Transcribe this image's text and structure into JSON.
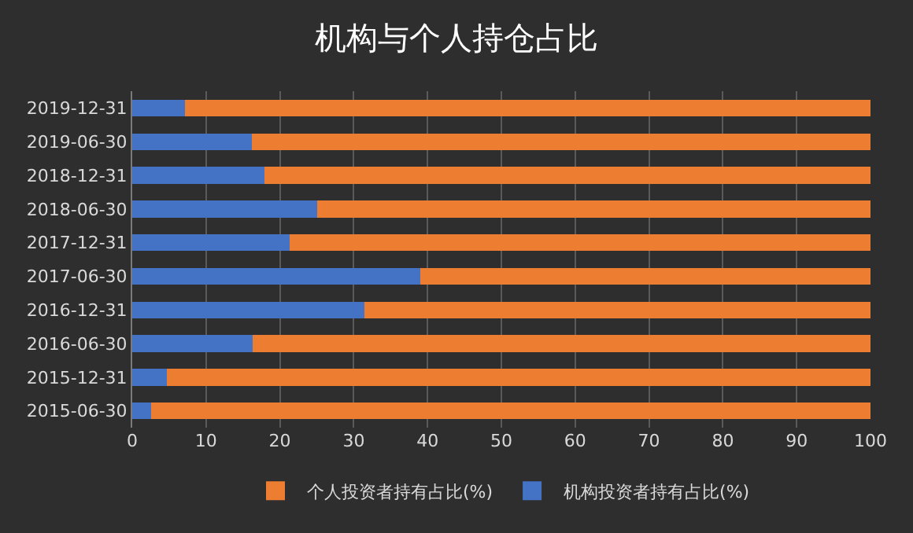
{
  "chart_data": {
    "type": "bar",
    "orientation": "horizontal",
    "stacked": true,
    "title": "机构与个人持仓占比",
    "categories": [
      "2019-12-31",
      "2019-06-30",
      "2018-12-31",
      "2018-06-30",
      "2017-12-31",
      "2017-06-30",
      "2016-12-31",
      "2016-06-30",
      "2015-12-31",
      "2015-06-30"
    ],
    "series": [
      {
        "name": "机构投资者持有占比(%)",
        "color": "#4472c4",
        "values": [
          7.1,
          16.2,
          17.9,
          25.1,
          21.3,
          39.0,
          31.5,
          16.3,
          4.7,
          2.6
        ]
      },
      {
        "name": "个人投资者持有占比(%)",
        "color": "#ed7d31",
        "values": [
          92.9,
          83.8,
          82.1,
          74.9,
          78.7,
          61.0,
          68.5,
          83.7,
          95.3,
          97.4
        ]
      }
    ],
    "xlim": [
      0,
      100
    ],
    "xticks": [
      0,
      10,
      20,
      30,
      40,
      50,
      60,
      70,
      80,
      90,
      100
    ],
    "grid": "x",
    "legend": "bottom"
  }
}
